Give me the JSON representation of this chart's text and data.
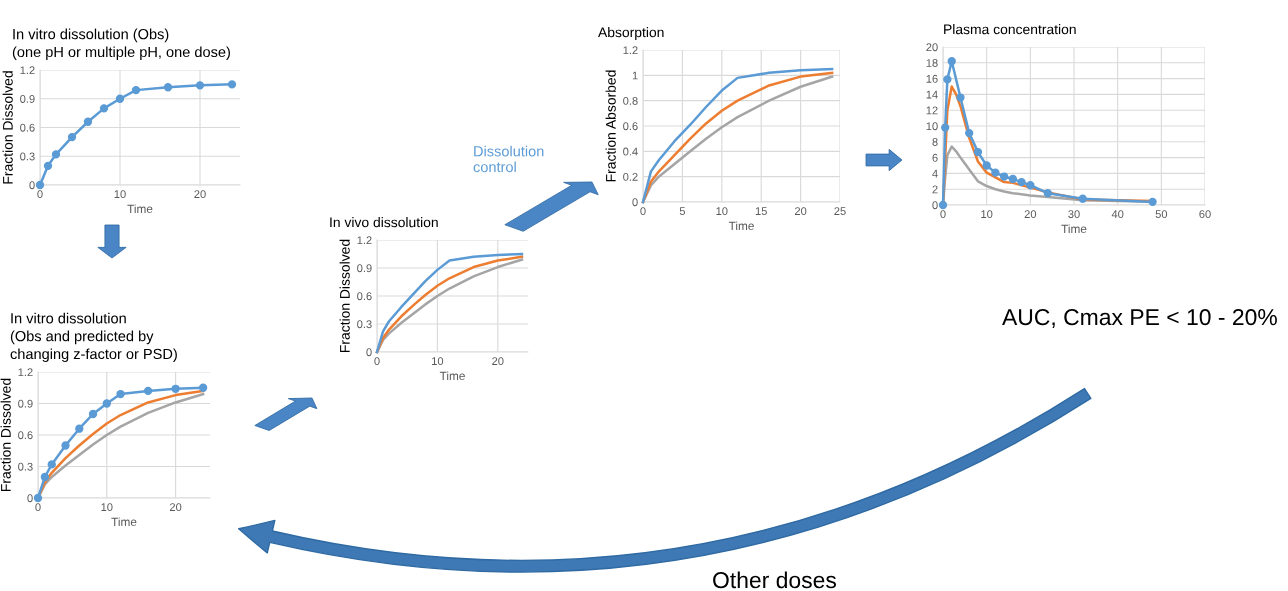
{
  "chart_data": [
    {
      "type": "line",
      "title": "In vitro dissolution (Obs)\n(one pH or multiple pH, one dose)",
      "xlabel": "Time",
      "ylabel": "Fraction Dissolved",
      "xlim": [
        0,
        25
      ],
      "xticks": [
        0,
        10,
        20
      ],
      "ylim": [
        0,
        1.2
      ],
      "yticks": [
        0,
        0.3,
        0.6,
        0.9,
        1.2
      ],
      "grid": true,
      "x": [
        0,
        1,
        2,
        4,
        6,
        8,
        10,
        12,
        16,
        20,
        24
      ],
      "series": [
        {
          "color": "#5b9bd5",
          "marker": "circle",
          "values": [
            0,
            0.2,
            0.32,
            0.5,
            0.66,
            0.8,
            0.9,
            0.99,
            1.02,
            1.04,
            1.05
          ]
        }
      ]
    },
    {
      "type": "line",
      "title": "In vitro dissolution\n(Obs and predicted by\nchanging z-factor or PSD)",
      "xlabel": "Time",
      "ylabel": "Fraction Dissolved",
      "xlim": [
        0,
        25
      ],
      "xticks": [
        0,
        10,
        20
      ],
      "ylim": [
        0,
        1.2
      ],
      "yticks": [
        0,
        0.3,
        0.6,
        0.9,
        1.2
      ],
      "grid": true,
      "x": [
        0,
        1,
        2,
        4,
        6,
        8,
        10,
        12,
        16,
        20,
        24
      ],
      "series": [
        {
          "color": "#a5a5a5",
          "marker": "none",
          "values": [
            0,
            0.13,
            0.2,
            0.31,
            0.41,
            0.51,
            0.6,
            0.68,
            0.81,
            0.91,
            0.99
          ]
        },
        {
          "color": "#ed7d31",
          "marker": "none",
          "values": [
            0,
            0.15,
            0.24,
            0.38,
            0.5,
            0.61,
            0.71,
            0.79,
            0.91,
            0.98,
            1.02
          ]
        },
        {
          "color": "#5b9bd5",
          "marker": "circle",
          "values": [
            0,
            0.2,
            0.32,
            0.5,
            0.66,
            0.8,
            0.9,
            0.99,
            1.02,
            1.04,
            1.05
          ]
        }
      ]
    },
    {
      "type": "line",
      "title": "In vivo dissolution",
      "xlabel": "Time",
      "ylabel": "Fraction Dissolved",
      "xlim": [
        0,
        25
      ],
      "xticks": [
        0,
        10,
        20
      ],
      "ylim": [
        0,
        1.2
      ],
      "yticks": [
        0,
        0.3,
        0.6,
        0.9,
        1.2
      ],
      "grid": true,
      "x": [
        0,
        1,
        2,
        4,
        6,
        8,
        10,
        12,
        16,
        20,
        24
      ],
      "series": [
        {
          "color": "#a5a5a5",
          "marker": "none",
          "values": [
            0,
            0.13,
            0.2,
            0.31,
            0.41,
            0.51,
            0.6,
            0.68,
            0.81,
            0.91,
            0.99
          ]
        },
        {
          "color": "#ed7d31",
          "marker": "none",
          "values": [
            0,
            0.15,
            0.24,
            0.38,
            0.5,
            0.61,
            0.71,
            0.79,
            0.91,
            0.98,
            1.02
          ]
        },
        {
          "color": "#5b9bd5",
          "marker": "none",
          "values": [
            0,
            0.22,
            0.33,
            0.48,
            0.62,
            0.76,
            0.88,
            0.98,
            1.02,
            1.04,
            1.05
          ]
        }
      ]
    },
    {
      "type": "line",
      "title": "Absorption",
      "xlabel": "Time",
      "ylabel": "Fraction Absorbed",
      "xlim": [
        0,
        25
      ],
      "xticks": [
        0,
        5,
        10,
        15,
        20,
        25
      ],
      "ylim": [
        0,
        1.2
      ],
      "yticks": [
        0,
        0.2,
        0.4,
        0.6,
        0.8,
        1,
        1.2
      ],
      "grid": true,
      "x": [
        0,
        1,
        2,
        4,
        6,
        8,
        10,
        12,
        16,
        20,
        24
      ],
      "series": [
        {
          "color": "#a5a5a5",
          "marker": "none",
          "values": [
            0,
            0.13,
            0.2,
            0.3,
            0.4,
            0.5,
            0.59,
            0.67,
            0.8,
            0.91,
            0.99
          ]
        },
        {
          "color": "#ed7d31",
          "marker": "none",
          "values": [
            0,
            0.16,
            0.24,
            0.37,
            0.5,
            0.62,
            0.72,
            0.8,
            0.92,
            0.99,
            1.02
          ]
        },
        {
          "color": "#5b9bd5",
          "marker": "none",
          "values": [
            0,
            0.24,
            0.33,
            0.48,
            0.61,
            0.75,
            0.88,
            0.98,
            1.02,
            1.04,
            1.05
          ]
        }
      ]
    },
    {
      "type": "line",
      "title": "Plasma concentration",
      "xlabel": "Time",
      "xlim": [
        0,
        60
      ],
      "xticks": [
        0,
        10,
        20,
        30,
        40,
        50,
        60
      ],
      "ylim": [
        0,
        20
      ],
      "yticks": [
        0,
        2,
        4,
        6,
        8,
        10,
        12,
        14,
        16,
        18,
        20
      ],
      "grid": true,
      "series": [
        {
          "color": "#a5a5a5",
          "marker": "none",
          "x": [
            0,
            0.5,
            1,
            2,
            3,
            4,
            6,
            8,
            10,
            12,
            14,
            16,
            20,
            24,
            32,
            48
          ],
          "values": [
            0,
            3.5,
            6.3,
            7.4,
            6.8,
            6.0,
            4.5,
            3.0,
            2.4,
            2.0,
            1.7,
            1.5,
            1.2,
            1.0,
            0.6,
            0.4
          ]
        },
        {
          "color": "#ed7d31",
          "marker": "none",
          "x": [
            0,
            0.5,
            1,
            2,
            3,
            4,
            6,
            8,
            10,
            12,
            14,
            16,
            20,
            24,
            32,
            48
          ],
          "values": [
            0,
            6,
            12,
            15,
            14,
            12.5,
            8.5,
            5.5,
            4.1,
            3.5,
            2.9,
            2.8,
            2.2,
            1.6,
            0.7,
            0.5
          ]
        },
        {
          "color": "#5b9bd5",
          "marker": "circle",
          "x": [
            0,
            0.5,
            1,
            2,
            4,
            6,
            8,
            10,
            12,
            14,
            16,
            18,
            20,
            24,
            32,
            48
          ],
          "values": [
            0,
            9.8,
            15.9,
            18.2,
            13.6,
            9.1,
            6.7,
            5.0,
            4.1,
            3.6,
            3.3,
            2.9,
            2.5,
            1.5,
            0.8,
            0.4
          ]
        }
      ]
    },
    {
      "type": "other",
      "annotations": [
        "Dissolution\ncontrol",
        "AUC, Cmax PE < 10 - 20%",
        "Other doses"
      ]
    }
  ]
}
